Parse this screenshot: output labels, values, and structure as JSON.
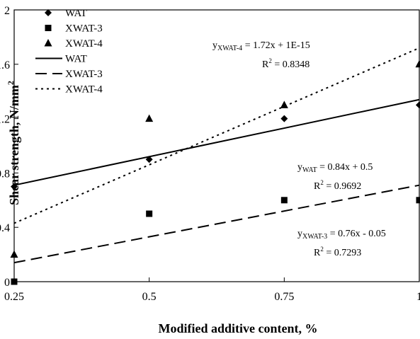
{
  "chart_data": {
    "type": "scatter",
    "xlabel": "Modified additive content, %",
    "ylabel": "Shear strength, N/mm",
    "ylabel_sup": "2",
    "xlim": [
      0.25,
      1.0
    ],
    "ylim": [
      0,
      2
    ],
    "x_ticks": [
      0.25,
      0.5,
      0.75,
      1.0
    ],
    "x_tick_labels": [
      "0.25",
      "0.5",
      "0.75",
      "1"
    ],
    "y_ticks": [
      0,
      0.4,
      0.8,
      1.2,
      1.6,
      2
    ],
    "y_tick_labels": [
      "0",
      "0.4",
      "0.8",
      "1.2",
      "1.6",
      "2"
    ],
    "grid": false,
    "legend_position": "top-left",
    "series": [
      {
        "name": "WAT",
        "marker": "diamond",
        "x": [
          0.25,
          0.5,
          0.75,
          1.0
        ],
        "y": [
          0.7,
          0.9,
          1.2,
          1.3
        ]
      },
      {
        "name": "XWAT-3",
        "marker": "square",
        "x": [
          0.25,
          0.5,
          0.75,
          1.0
        ],
        "y": [
          0.0,
          0.5,
          0.6,
          0.6
        ]
      },
      {
        "name": "XWAT-4",
        "marker": "triangle",
        "x": [
          0.25,
          0.5,
          0.75,
          1.0
        ],
        "y": [
          0.2,
          1.2,
          1.3,
          1.6
        ]
      }
    ],
    "trendlines": [
      {
        "name": "WAT",
        "style": "solid",
        "slope": 0.84,
        "intercept": 0.5
      },
      {
        "name": "XWAT-3",
        "style": "dashed",
        "slope": 0.76,
        "intercept": -0.05
      },
      {
        "name": "XWAT-4",
        "style": "dotted",
        "slope": 1.72,
        "intercept": 0.0
      }
    ],
    "annotations": [
      {
        "sub": "XWAT-4",
        "equation": " = 1.72x + 1E-15",
        "r2": " = 0.8348"
      },
      {
        "sub": "WAT",
        "equation": " = 0.84x + 0.5",
        "r2": " = 0.9692"
      },
      {
        "sub": "XWAT-3",
        "equation": " = 0.76x - 0.05",
        "r2": " = 0.7293"
      }
    ],
    "eq_y": "y",
    "eq_r": "R",
    "eq_r_sup": "2"
  }
}
